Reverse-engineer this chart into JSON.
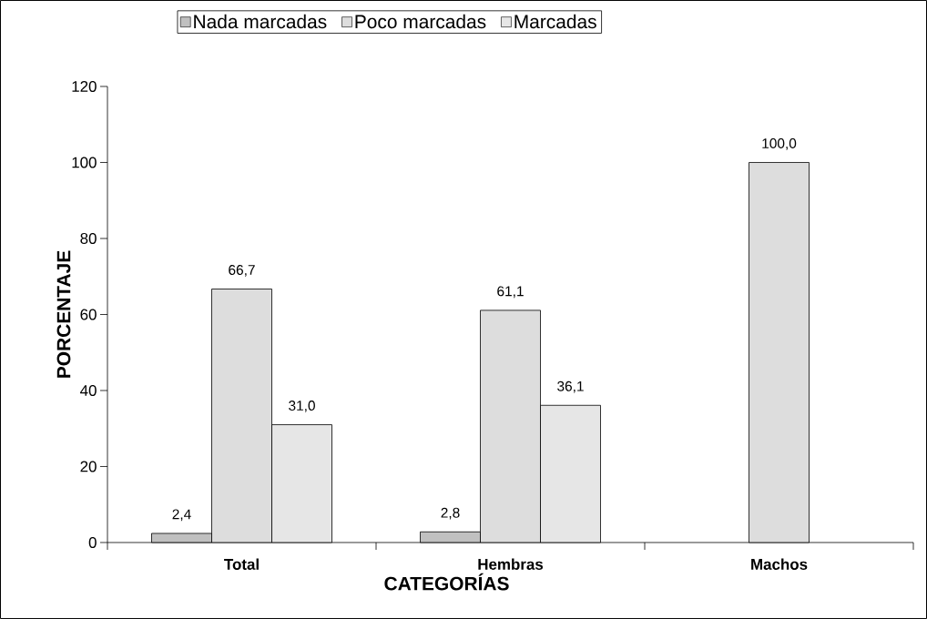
{
  "chart_data": {
    "type": "bar",
    "xlabel": "CATEGORÍAS",
    "ylabel": "PORCENTAJE",
    "categories": [
      "Total",
      "Hembras",
      "Machos"
    ],
    "series": [
      {
        "name": "Nada marcadas",
        "color": "#c0c0c0",
        "values": [
          2.4,
          2.8,
          null
        ],
        "value_labels": [
          "2,4",
          "2,8",
          null
        ]
      },
      {
        "name": "Poco marcadas",
        "color": "#dddddd",
        "values": [
          66.7,
          61.1,
          100.0
        ],
        "value_labels": [
          "66,7",
          "61,1",
          "100,0"
        ]
      },
      {
        "name": "Marcadas",
        "color": "#e6e6e6",
        "values": [
          31.0,
          36.1,
          null
        ],
        "value_labels": [
          "31,0",
          "36,1",
          null
        ]
      }
    ],
    "ylim": [
      0,
      120
    ],
    "yticks": [
      0,
      20,
      40,
      60,
      80,
      100,
      120
    ],
    "grid": false,
    "legend": "top"
  }
}
